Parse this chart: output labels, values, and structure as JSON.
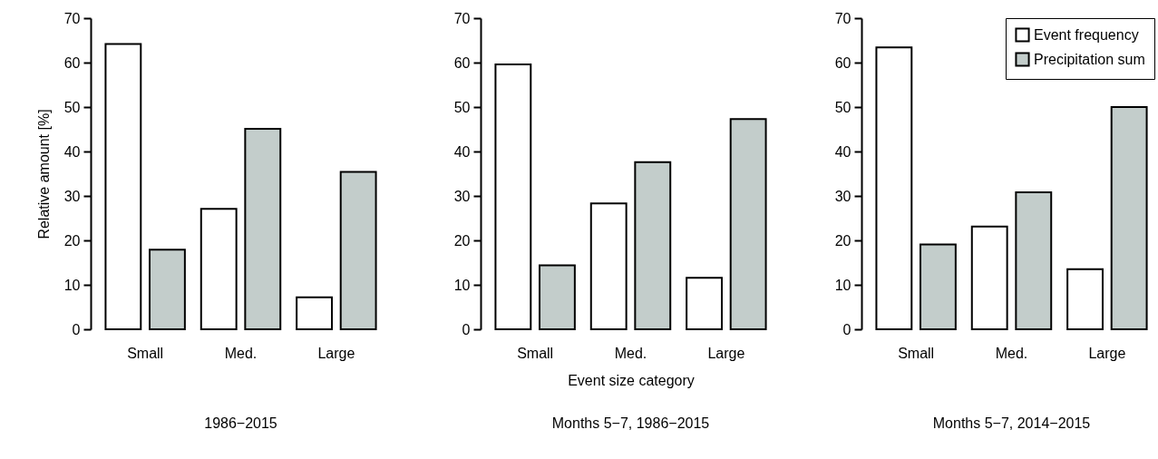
{
  "chart_data": [
    {
      "type": "bar",
      "title": "1986−2015",
      "ylabel": "Relative amount [%]",
      "categories": [
        "Small",
        "Med.",
        "Large"
      ],
      "series": [
        {
          "color": "#ffffff",
          "values": [
            64.2,
            27.1,
            7.2
          ]
        },
        {
          "color": "#c3cdcb",
          "values": [
            17.9,
            45.1,
            35.4
          ]
        }
      ],
      "ylim": [
        0,
        70
      ],
      "yticks": [
        0,
        10,
        20,
        30,
        40,
        50,
        60,
        70
      ]
    },
    {
      "type": "bar",
      "title": "Months 5−7, 1986−2015",
      "xlabel": "Event size category",
      "categories": [
        "Small",
        "Med.",
        "Large"
      ],
      "series": [
        {
          "color": "#ffffff",
          "values": [
            59.6,
            28.3,
            11.6
          ]
        },
        {
          "color": "#c3cdcb",
          "values": [
            14.4,
            37.6,
            47.3
          ]
        }
      ],
      "ylim": [
        0,
        70
      ],
      "yticks": [
        0,
        10,
        20,
        30,
        40,
        50,
        60,
        70
      ]
    },
    {
      "type": "bar",
      "title": "Months 5−7, 2014−2015",
      "categories": [
        "Small",
        "Med.",
        "Large"
      ],
      "series": [
        {
          "name": "Event frequency",
          "color": "#ffffff",
          "values": [
            63.4,
            23.1,
            13.5
          ]
        },
        {
          "name": "Precipitation sum",
          "color": "#c3cdcb",
          "values": [
            19.1,
            30.8,
            50.0
          ]
        }
      ],
      "ylim": [
        0,
        70
      ],
      "yticks": [
        0,
        10,
        20,
        30,
        40,
        50,
        60,
        70
      ],
      "legend": "top right"
    }
  ]
}
